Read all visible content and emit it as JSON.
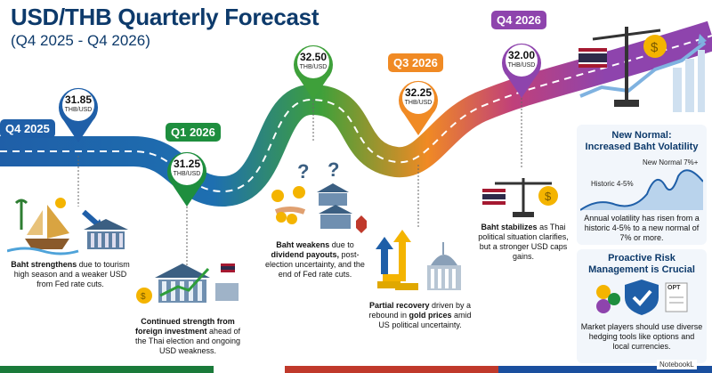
{
  "header": {
    "title": "USD/THB Quarterly Forecast",
    "subtitle": "(Q4 2025 - Q4 2026)"
  },
  "milestones": [
    {
      "quarter": "Q4 2025",
      "value": "31.85",
      "unit": "THB/USD",
      "color": "#1f5fa8",
      "desc_bold": "Baht strengthens",
      "desc_rest": " due to tourism high season and a weaker USD from Fed rate cuts."
    },
    {
      "quarter": "Q1 2026",
      "value": "31.25",
      "unit": "THB/USD",
      "color": "#1e8e3e",
      "desc_bold": "Continued strength from foreign investment",
      "desc_rest": " ahead of the Thai election and ongoing USD weakness."
    },
    {
      "quarter": "",
      "value": "32.50",
      "unit": "THB/USD",
      "color": "#3ea03a",
      "desc_bold1": "Baht weakens",
      "desc_mid1": " due to ",
      "desc_bold2": "dividend payouts,",
      "desc_rest": " post-election uncertainty, and the end of Fed rate cuts."
    },
    {
      "quarter": "Q3 2026",
      "value": "32.25",
      "unit": "THB/USD",
      "color": "#f08a24",
      "desc_bold1": "Partial recovery",
      "desc_mid1": " driven by a rebound in ",
      "desc_bold2": "gold prices",
      "desc_rest": " amid US political uncertainty."
    },
    {
      "quarter": "Q4 2026",
      "value": "32.00",
      "unit": "THB/USD",
      "color": "#8e44ad",
      "desc_bold": "Baht stabilizes",
      "desc_rest": " as Thai political situation clarifies, but a stronger USD caps gains."
    }
  ],
  "volatility_panel": {
    "title_line1": "New Normal:",
    "title_line2": "Increased Baht Volatility",
    "label_new": "New Normal 7%+",
    "label_hist": "Historic 4-5%",
    "text": "Annual volatility has risen from a historic 4-5% to a new normal of 7% or more."
  },
  "risk_panel": {
    "title_line1": "Proactive Risk",
    "title_line2": "Management is Crucial",
    "opt_label": "OPT",
    "text": "Market players should use diverse hedging tools like options and local currencies."
  },
  "footer": {
    "brand": "NotebookL"
  },
  "colors": {
    "navy": "#0d3a6b",
    "road": "#2b3a55"
  }
}
